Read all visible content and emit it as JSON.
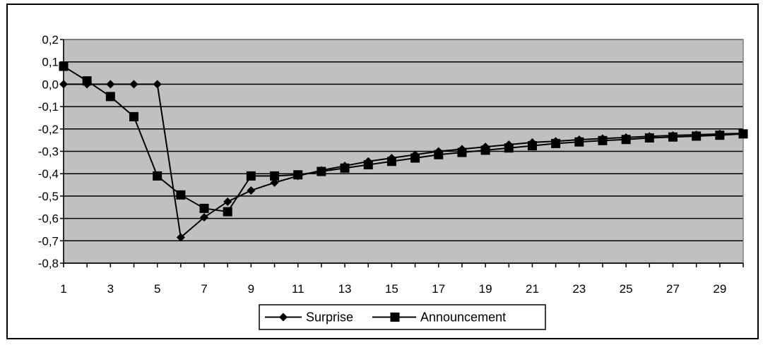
{
  "chart_data": {
    "type": "line",
    "x": [
      1,
      2,
      3,
      4,
      5,
      6,
      7,
      8,
      9,
      10,
      11,
      12,
      13,
      14,
      15,
      16,
      17,
      18,
      19,
      20,
      21,
      22,
      23,
      24,
      25,
      26,
      27,
      28,
      29,
      30
    ],
    "x_tick_labels": [
      "1",
      "3",
      "5",
      "7",
      "9",
      "11",
      "13",
      "15",
      "17",
      "19",
      "21",
      "23",
      "25",
      "27",
      "29"
    ],
    "y_tick_labels": [
      "0,2",
      "0,1",
      "0,0",
      "-0,1",
      "-0,2",
      "-0,3",
      "-0,4",
      "-0,5",
      "-0,6",
      "-0,7",
      "-0,8"
    ],
    "ylim": [
      -0.8,
      0.2
    ],
    "grid": true,
    "legend_position": "bottom-center",
    "colors": {
      "plot_bg": "#c0c0c0",
      "line": "#000000",
      "frame": "#000000"
    },
    "series": [
      {
        "name": "Surprise",
        "marker": "diamond",
        "values": [
          0.0,
          0.0,
          0.0,
          0.0,
          0.0,
          -0.685,
          -0.595,
          -0.525,
          -0.475,
          -0.44,
          -0.41,
          -0.385,
          -0.365,
          -0.345,
          -0.33,
          -0.315,
          -0.3,
          -0.29,
          -0.28,
          -0.27,
          -0.26,
          -0.255,
          -0.248,
          -0.243,
          -0.238,
          -0.233,
          -0.229,
          -0.226,
          -0.222,
          -0.22
        ]
      },
      {
        "name": "Announcement",
        "marker": "square",
        "values": [
          0.08,
          0.015,
          -0.055,
          -0.145,
          -0.41,
          -0.495,
          -0.555,
          -0.57,
          -0.41,
          -0.41,
          -0.405,
          -0.39,
          -0.375,
          -0.36,
          -0.345,
          -0.33,
          -0.315,
          -0.305,
          -0.295,
          -0.285,
          -0.275,
          -0.265,
          -0.258,
          -0.252,
          -0.247,
          -0.24,
          -0.236,
          -0.232,
          -0.228,
          -0.222
        ]
      }
    ]
  }
}
